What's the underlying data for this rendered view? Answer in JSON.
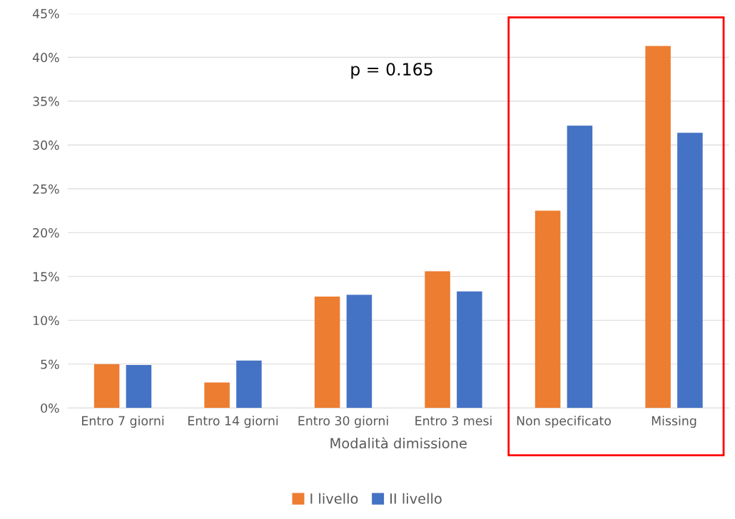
{
  "chart_data": {
    "type": "bar",
    "xlabel": "Modalità dimissione",
    "categories": [
      "Entro 7 giorni",
      "Entro 14 giorni",
      "Entro 30 giorni",
      "Entro 3 mesi",
      "Non specificato",
      "Missing"
    ],
    "series": [
      {
        "name": "I livello",
        "color": "#ed7d31",
        "values": [
          5.0,
          2.9,
          12.7,
          15.6,
          22.5,
          41.3
        ]
      },
      {
        "name": "II livello",
        "color": "#4472c4",
        "values": [
          4.9,
          5.4,
          12.9,
          13.3,
          32.2,
          31.4
        ]
      }
    ],
    "ylim": [
      0,
      45
    ],
    "yticks": [
      {
        "value": 0,
        "label": "0%"
      },
      {
        "value": 5,
        "label": "5%"
      },
      {
        "value": 10,
        "label": "10%"
      },
      {
        "value": 15,
        "label": "15%"
      },
      {
        "value": 20,
        "label": "20%"
      },
      {
        "value": 25,
        "label": "25%"
      },
      {
        "value": 30,
        "label": "30%"
      },
      {
        "value": 35,
        "label": "35%"
      },
      {
        "value": 40,
        "label": "40%"
      },
      {
        "value": 45,
        "label": "45%"
      }
    ],
    "annotations": [
      "p = 0.165"
    ],
    "grid": "y",
    "legend": "bottom"
  }
}
